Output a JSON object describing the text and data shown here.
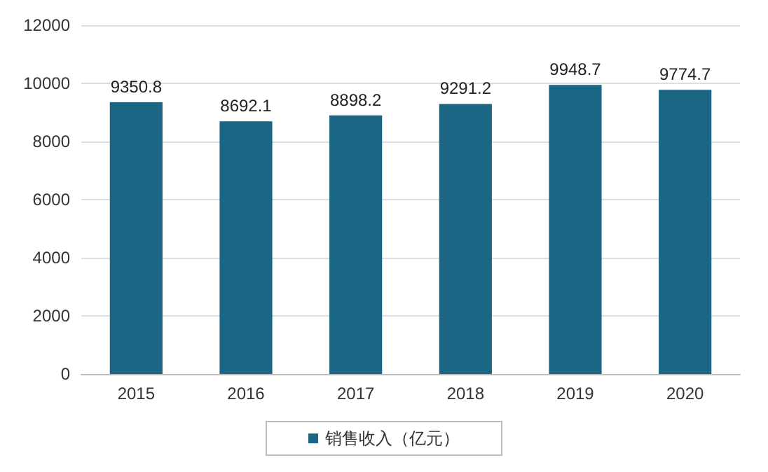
{
  "chart_data": {
    "type": "bar",
    "categories": [
      "2015",
      "2016",
      "2017",
      "2018",
      "2019",
      "2020"
    ],
    "series": [
      {
        "name": "销售收入（亿元）",
        "color": "#1b6585",
        "values": [
          9350.8,
          8692.1,
          8898.2,
          9291.2,
          9948.7,
          9774.7
        ]
      }
    ],
    "ylim": [
      0,
      12000
    ],
    "yticks": [
      0,
      2000,
      4000,
      6000,
      8000,
      10000,
      12000
    ],
    "grid": "y",
    "legend": "bottom",
    "data_labels": true
  }
}
